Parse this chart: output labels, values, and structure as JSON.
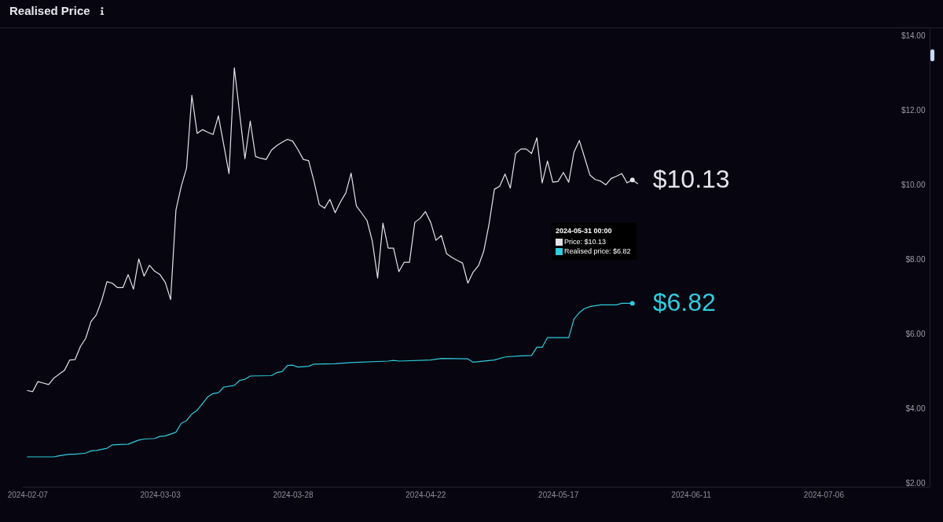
{
  "chart_data": {
    "type": "line",
    "title": "Realised Price",
    "series": [
      {
        "color": "#e4e4ec",
        "x": [
          "2024-02-07",
          "2024-02-08",
          "2024-02-09",
          "2024-02-10",
          "2024-02-11",
          "2024-02-12",
          "2024-02-13",
          "2024-02-14",
          "2024-02-15",
          "2024-02-16",
          "2024-02-17",
          "2024-02-18",
          "2024-02-19",
          "2024-02-20",
          "2024-02-21",
          "2024-02-22",
          "2024-02-23",
          "2024-02-24",
          "2024-02-25",
          "2024-02-26",
          "2024-02-27",
          "2024-02-28",
          "2024-02-29",
          "2024-03-01",
          "2024-03-02",
          "2024-03-03",
          "2024-03-04",
          "2024-03-05",
          "2024-03-06",
          "2024-03-07",
          "2024-03-08",
          "2024-03-09",
          "2024-03-10",
          "2024-03-11",
          "2024-03-12",
          "2024-03-13",
          "2024-03-14",
          "2024-03-15",
          "2024-03-16",
          "2024-03-17",
          "2024-03-18",
          "2024-03-19",
          "2024-03-20",
          "2024-03-21",
          "2024-03-22",
          "2024-03-23",
          "2024-03-24",
          "2024-03-25",
          "2024-03-26",
          "2024-03-27",
          "2024-03-28",
          "2024-03-29",
          "2024-03-30",
          "2024-03-31",
          "2024-04-01",
          "2024-04-02",
          "2024-04-03",
          "2024-04-04",
          "2024-04-05",
          "2024-04-06",
          "2024-04-07",
          "2024-04-08",
          "2024-04-09",
          "2024-04-10",
          "2024-04-11",
          "2024-04-12",
          "2024-04-13",
          "2024-04-14",
          "2024-04-15",
          "2024-04-16",
          "2024-04-17",
          "2024-04-18",
          "2024-04-19",
          "2024-04-20",
          "2024-04-21",
          "2024-04-22",
          "2024-04-23",
          "2024-04-24",
          "2024-04-25",
          "2024-04-26",
          "2024-04-27",
          "2024-04-28",
          "2024-04-29",
          "2024-04-30",
          "2024-05-01",
          "2024-05-02",
          "2024-05-03",
          "2024-05-04",
          "2024-05-05",
          "2024-05-06",
          "2024-05-07",
          "2024-05-08",
          "2024-05-09",
          "2024-05-10",
          "2024-05-11",
          "2024-05-12",
          "2024-05-13",
          "2024-05-14",
          "2024-05-15",
          "2024-05-16",
          "2024-05-17",
          "2024-05-18",
          "2024-05-19",
          "2024-05-20",
          "2024-05-21",
          "2024-05-22",
          "2024-05-23",
          "2024-05-24",
          "2024-05-25",
          "2024-05-26",
          "2024-05-27",
          "2024-05-28",
          "2024-05-29",
          "2024-05-30",
          "2024-05-31",
          "2024-06-01"
        ],
        "values": [
          4.48,
          4.45,
          4.72,
          4.68,
          4.64,
          4.81,
          4.92,
          5.02,
          5.3,
          5.31,
          5.66,
          5.88,
          6.33,
          6.51,
          6.89,
          7.4,
          7.36,
          7.24,
          7.24,
          7.59,
          7.2,
          8.01,
          7.55,
          7.84,
          7.68,
          7.59,
          7.38,
          6.92,
          9.32,
          9.96,
          10.45,
          12.4,
          11.38,
          11.48,
          11.41,
          11.35,
          11.85,
          11.08,
          10.3,
          13.14,
          11.92,
          10.7,
          11.71,
          10.76,
          10.71,
          10.68,
          10.93,
          11.05,
          11.14,
          11.22,
          11.17,
          10.94,
          10.68,
          10.65,
          10.1,
          9.47,
          9.37,
          9.61,
          9.25,
          9.54,
          9.78,
          10.31,
          9.43,
          9.24,
          9.04,
          8.49,
          7.5,
          8.97,
          8.3,
          8.3,
          7.67,
          7.92,
          7.92,
          8.99,
          9.1,
          9.28,
          8.99,
          8.51,
          8.64,
          8.15,
          8.05,
          7.97,
          7.9,
          7.36,
          7.66,
          7.83,
          8.22,
          8.95,
          9.88,
          9.96,
          10.29,
          9.91,
          10.84,
          10.96,
          10.96,
          10.84,
          11.26,
          10.05,
          10.64,
          10.07,
          10.09,
          10.33,
          10.07,
          10.88,
          11.19,
          10.73,
          10.26,
          10.14,
          10.1,
          10.0,
          10.17,
          10.23,
          10.3,
          10.05,
          10.13,
          10.03
        ]
      },
      {
        "color": "#2fcde0",
        "x": [
          "2024-02-07",
          "2024-02-12",
          "2024-02-13",
          "2024-02-15",
          "2024-02-16",
          "2024-02-18",
          "2024-02-19",
          "2024-02-20",
          "2024-02-22",
          "2024-02-23",
          "2024-02-24",
          "2024-02-26",
          "2024-02-28",
          "2024-02-29",
          "2024-03-02",
          "2024-03-03",
          "2024-03-04",
          "2024-03-06",
          "2024-03-07",
          "2024-03-08",
          "2024-03-09",
          "2024-03-10",
          "2024-03-12",
          "2024-03-13",
          "2024-03-14",
          "2024-03-15",
          "2024-03-17",
          "2024-03-18",
          "2024-03-19",
          "2024-03-20",
          "2024-03-24",
          "2024-03-25",
          "2024-03-26",
          "2024-03-27",
          "2024-03-28",
          "2024-03-29",
          "2024-03-31",
          "2024-04-01",
          "2024-04-05",
          "2024-04-08",
          "2024-04-15",
          "2024-04-16",
          "2024-04-17",
          "2024-04-23",
          "2024-04-25",
          "2024-04-30",
          "2024-05-01",
          "2024-05-05",
          "2024-05-07",
          "2024-05-10",
          "2024-05-12",
          "2024-05-13",
          "2024-05-14",
          "2024-05-15",
          "2024-05-19",
          "2024-05-20",
          "2024-05-21",
          "2024-05-22",
          "2024-05-23",
          "2024-05-25",
          "2024-05-28",
          "2024-05-29",
          "2024-05-31"
        ],
        "values": [
          2.7,
          2.7,
          2.73,
          2.77,
          2.77,
          2.8,
          2.86,
          2.87,
          2.93,
          3.02,
          3.03,
          3.04,
          3.15,
          3.18,
          3.19,
          3.25,
          3.26,
          3.36,
          3.6,
          3.67,
          3.85,
          3.95,
          4.31,
          4.4,
          4.42,
          4.57,
          4.62,
          4.75,
          4.78,
          4.87,
          4.88,
          4.96,
          4.99,
          5.15,
          5.16,
          5.11,
          5.13,
          5.19,
          5.2,
          5.23,
          5.27,
          5.29,
          5.27,
          5.3,
          5.34,
          5.33,
          5.24,
          5.3,
          5.38,
          5.41,
          5.42,
          5.64,
          5.64,
          5.9,
          5.9,
          6.4,
          6.57,
          6.68,
          6.73,
          6.78,
          6.78,
          6.82,
          6.82
        ]
      }
    ],
    "xlim": [
      "2024-02-06",
      "2024-07-26"
    ],
    "xticks": [
      "2024-02-07",
      "2024-03-03",
      "2024-03-28",
      "2024-04-22",
      "2024-05-17",
      "2024-06-11",
      "2024-07-06"
    ],
    "ylim": [
      1.9,
      14.2
    ],
    "yticks": [
      {
        "value": 2,
        "label": "$2.00"
      },
      {
        "value": 4,
        "label": "$4.00"
      },
      {
        "value": 6,
        "label": "$6.00"
      },
      {
        "value": 8,
        "label": "$8.00"
      },
      {
        "value": 10,
        "label": "$10.00"
      },
      {
        "value": 12,
        "label": "$12.00"
      },
      {
        "value": 14,
        "label": "$14.00"
      }
    ],
    "annotations": [
      {
        "text": "$10.13",
        "x": "2024-05-31",
        "y": 10.13
      },
      {
        "text": "$6.82",
        "x": "2024-05-31",
        "y": 6.82
      },
      "2024-05-31 00:00",
      "Price: $10.13",
      "Realised price: $6.82"
    ]
  }
}
